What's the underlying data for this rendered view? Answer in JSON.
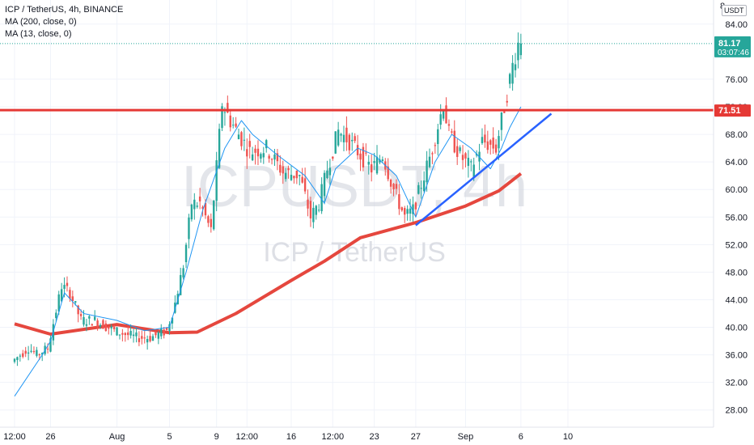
{
  "header": {
    "symbol_line": "ICP / TetherUS, 4h, BINANCE",
    "indicators": [
      "MA (200, close, 0)",
      "MA (13, close, 0)"
    ],
    "currency_badge": "USDT"
  },
  "watermark": {
    "ticker": "ICPUSDT, 4h",
    "name": "ICP / TetherUS"
  },
  "price_badges": {
    "last_price": "81.17",
    "countdown": "03:07:46",
    "level_label": "71.51"
  },
  "colors": {
    "up": "#26a69a",
    "down": "#ef5350",
    "ma200": "#e5473e",
    "ma13": "#2196f3",
    "resistance": "#e53935",
    "trendline": "#2962ff",
    "badge_green": "#26a69a",
    "badge_red": "#e53935"
  },
  "chart_data": {
    "type": "candlestick",
    "y_axis": {
      "ticks": [
        28,
        32,
        36,
        40,
        44,
        48,
        52,
        56,
        60,
        64,
        68,
        72,
        76,
        84
      ],
      "tick_labels": [
        "28.00",
        "32.00",
        "36.00",
        "40.00",
        "44.00",
        "48.00",
        "52.00",
        "56.00",
        "60.00",
        "64.00",
        "68.00",
        "72.00",
        "76.00",
        "84.00"
      ],
      "range": [
        25.5,
        87.5
      ]
    },
    "x_axis": {
      "ticks": [
        "12:00",
        "26",
        "Aug",
        "5",
        "9",
        "12:00",
        "16",
        "12:00",
        "23",
        "27",
        "Sep",
        "6",
        "10"
      ],
      "tick_positions": [
        0,
        13,
        37,
        56,
        73,
        84,
        100,
        115,
        130,
        145,
        163,
        183,
        200
      ]
    },
    "last_price": 81.17,
    "horizontal_levels": [
      {
        "value": 71.51,
        "label": "71.51"
      }
    ],
    "trendline": {
      "start": [
        145,
        54.8
      ],
      "end": [
        194,
        71
      ]
    },
    "ma200": [
      [
        0,
        40.5
      ],
      [
        13,
        39
      ],
      [
        37,
        40.4
      ],
      [
        56,
        39.2
      ],
      [
        66,
        39.3
      ],
      [
        80,
        42
      ],
      [
        100,
        46.8
      ],
      [
        112,
        49.6
      ],
      [
        125,
        53
      ],
      [
        145,
        55.2
      ],
      [
        163,
        57.6
      ],
      [
        175,
        59.8
      ],
      [
        183,
        62.3
      ]
    ],
    "ma13": [
      [
        0,
        30
      ],
      [
        10,
        36
      ],
      [
        13,
        38
      ],
      [
        18,
        45
      ],
      [
        25,
        42
      ],
      [
        37,
        41
      ],
      [
        47,
        39.5
      ],
      [
        56,
        40
      ],
      [
        62,
        48
      ],
      [
        68,
        57
      ],
      [
        76,
        66
      ],
      [
        82,
        70
      ],
      [
        86,
        68
      ],
      [
        95,
        65
      ],
      [
        105,
        62
      ],
      [
        112,
        58
      ],
      [
        116,
        63
      ],
      [
        124,
        66
      ],
      [
        130,
        65
      ],
      [
        138,
        62
      ],
      [
        145,
        56
      ],
      [
        152,
        64
      ],
      [
        158,
        68
      ],
      [
        165,
        66
      ],
      [
        172,
        63
      ],
      [
        176,
        66
      ],
      [
        179,
        69
      ],
      [
        183,
        72
      ]
    ],
    "ohlc_anchors": [
      [
        0,
        33,
        35
      ],
      [
        6,
        36,
        37
      ],
      [
        9,
        34.5,
        36
      ],
      [
        13,
        38,
        37
      ],
      [
        18,
        44,
        46
      ],
      [
        21,
        44,
        45
      ],
      [
        25,
        43,
        41
      ],
      [
        30,
        42,
        41
      ],
      [
        37,
        42,
        39.5
      ],
      [
        45,
        40,
        38.5
      ],
      [
        50,
        39,
        38.5
      ],
      [
        56,
        40,
        39.5
      ],
      [
        59,
        42,
        43.5
      ],
      [
        62,
        48,
        49
      ],
      [
        65,
        54,
        58
      ],
      [
        68,
        60,
        58
      ],
      [
        72,
        56,
        54
      ],
      [
        76,
        68,
        72.5
      ],
      [
        79,
        74,
        70
      ],
      [
        82,
        70,
        68
      ],
      [
        86,
        67,
        65.5
      ],
      [
        92,
        68,
        66
      ],
      [
        98,
        65,
        62.5
      ],
      [
        104,
        64,
        62
      ],
      [
        108,
        59,
        56
      ],
      [
        111,
        57,
        58
      ],
      [
        114,
        61,
        63
      ],
      [
        118,
        67,
        68.5
      ],
      [
        122,
        68,
        67
      ],
      [
        126,
        66,
        65
      ],
      [
        130,
        65,
        63
      ],
      [
        134,
        66,
        65
      ],
      [
        138,
        62,
        60
      ],
      [
        142,
        58,
        56
      ],
      [
        145,
        56,
        57
      ],
      [
        149,
        61,
        62
      ],
      [
        152,
        65,
        66
      ],
      [
        156,
        69,
        72.5
      ],
      [
        158,
        70,
        68
      ],
      [
        162,
        66,
        65
      ],
      [
        166,
        64,
        63
      ],
      [
        170,
        66,
        67
      ],
      [
        175,
        65,
        66
      ],
      [
        178,
        68,
        72
      ],
      [
        181,
        75,
        78
      ],
      [
        183,
        79,
        81.17
      ]
    ]
  }
}
